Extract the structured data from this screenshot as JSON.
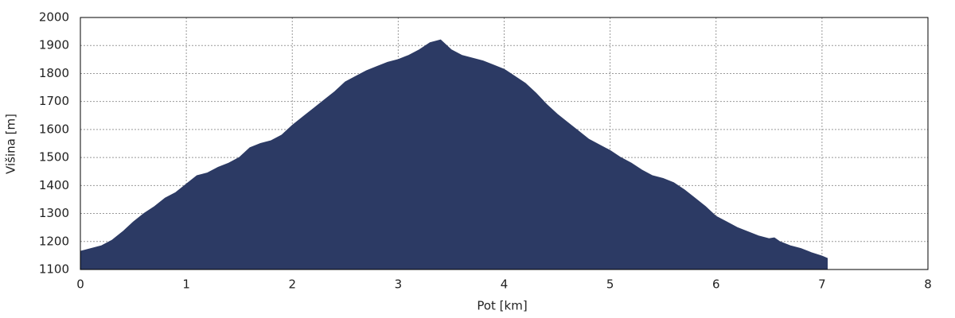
{
  "chart_data": {
    "type": "area",
    "xlabel": "Pot [km]",
    "ylabel": "Višina [m]",
    "x": [
      0,
      0.1,
      0.2,
      0.3,
      0.4,
      0.5,
      0.6,
      0.7,
      0.8,
      0.9,
      1.0,
      1.1,
      1.2,
      1.3,
      1.4,
      1.5,
      1.6,
      1.7,
      1.8,
      1.9,
      2.0,
      2.1,
      2.2,
      2.3,
      2.4,
      2.5,
      2.6,
      2.7,
      2.8,
      2.9,
      3.0,
      3.1,
      3.2,
      3.3,
      3.4,
      3.5,
      3.6,
      3.7,
      3.8,
      3.9,
      4.0,
      4.1,
      4.2,
      4.3,
      4.4,
      4.5,
      4.6,
      4.7,
      4.8,
      4.9,
      5.0,
      5.1,
      5.2,
      5.3,
      5.4,
      5.5,
      5.6,
      5.7,
      5.8,
      5.9,
      6.0,
      6.1,
      6.2,
      6.3,
      6.4,
      6.5,
      6.55,
      6.6,
      6.7,
      6.8,
      6.9,
      7.0,
      7.05
    ],
    "values": [
      1165,
      1175,
      1185,
      1205,
      1235,
      1270,
      1300,
      1325,
      1355,
      1375,
      1405,
      1435,
      1445,
      1465,
      1480,
      1500,
      1535,
      1550,
      1560,
      1580,
      1615,
      1645,
      1675,
      1705,
      1735,
      1770,
      1790,
      1810,
      1825,
      1840,
      1850,
      1865,
      1885,
      1910,
      1920,
      1885,
      1865,
      1855,
      1845,
      1830,
      1815,
      1790,
      1765,
      1730,
      1690,
      1655,
      1625,
      1595,
      1565,
      1545,
      1525,
      1500,
      1480,
      1455,
      1435,
      1425,
      1410,
      1385,
      1355,
      1325,
      1290,
      1270,
      1250,
      1235,
      1220,
      1210,
      1213,
      1200,
      1185,
      1175,
      1160,
      1148,
      1140
    ],
    "color": "#2c3a64",
    "xlim": [
      0,
      8
    ],
    "xticks": [
      0,
      1,
      2,
      3,
      4,
      5,
      6,
      7,
      8
    ],
    "ylim": [
      1100,
      2000
    ],
    "yticks": [
      1100,
      1200,
      1300,
      1400,
      1500,
      1600,
      1700,
      1800,
      1900,
      2000
    ],
    "grid": true
  }
}
